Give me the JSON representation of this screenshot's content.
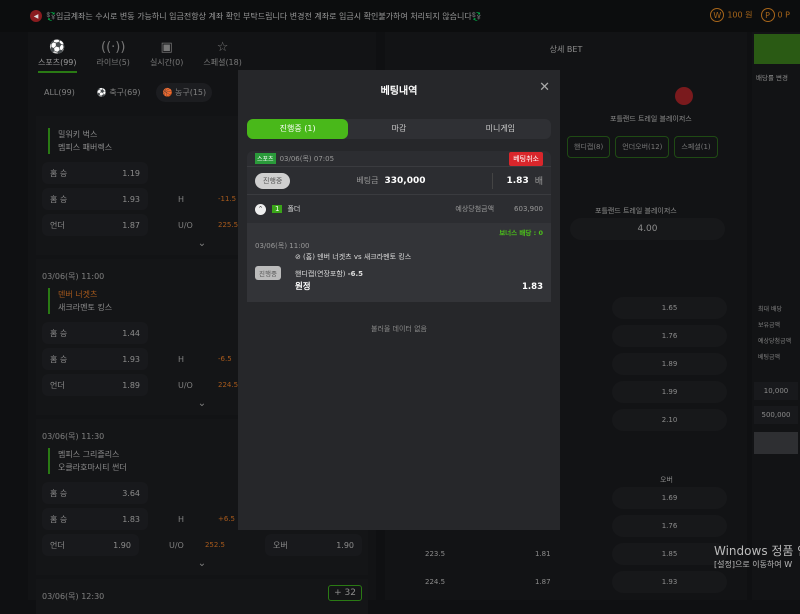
{
  "topbar": {
    "notice": "💱입금계좌는 수시로 변동 가능하니 입금전항상 계좌 확인 부탁드립니다 변경전 계좌로 입금시 확인불가하여 처리되지 않습니다💱",
    "notice_icon": "megaphone-icon",
    "wallet": "100 원",
    "points": "0 P"
  },
  "left": {
    "tabs": [
      {
        "label": "스포츠(99)",
        "icon": "⚽"
      },
      {
        "label": "라이브(5)",
        "icon": "((·))"
      },
      {
        "label": "실시간(0)",
        "icon": "▣"
      },
      {
        "label": "스페셜(18)",
        "icon": "☆"
      }
    ],
    "subtabs": [
      "ALL(99)",
      "⚽ 축구(69)",
      "🏀 농구(15)"
    ],
    "matches": [
      {
        "date": "",
        "home": "밀워키 벅스",
        "away": "멤피스 패버렉스",
        "rows": [
          [
            "홈 승",
            "1.19",
            "",
            ""
          ],
          [
            "홈 승",
            "1.93",
            "H",
            "-11.5"
          ],
          [
            "언더",
            "1.87",
            "U/O",
            "225.5"
          ]
        ]
      },
      {
        "date": "03/06(목) 11:00",
        "home": "덴버 너겟츠",
        "away": "새크라멘토 킹스",
        "rows": [
          [
            "홈 승",
            "1.44",
            "",
            ""
          ],
          [
            "홈 승",
            "1.93",
            "H",
            "-6.5"
          ],
          [
            "언더",
            "1.89",
            "U/O",
            "224.5"
          ]
        ]
      },
      {
        "date": "03/06(목) 11:30",
        "home": "멤피스 그리즐리스",
        "away": "오클라호마시티 썬더",
        "rows": [
          [
            "홈 승",
            "3.64",
            "",
            ""
          ],
          [
            "홈 승",
            "1.83",
            "H",
            "+6.5"
          ],
          [
            "언더",
            "1.90",
            "U/O",
            "252.5"
          ]
        ],
        "over": "오버",
        "over_odds": "1.90"
      },
      {
        "date": "03/06(목) 12:30",
        "more": "+ 32"
      }
    ]
  },
  "mid": {
    "title": "상세 BET",
    "team": "포틀랜드 트레일 블레이저스",
    "buttons": [
      "핸디캡(8)",
      "언더오버(12)",
      "스페셜(1)"
    ],
    "odds_a": "4.00",
    "odds_list": [
      "1.65",
      "1.76",
      "1.89",
      "1.99",
      "2.10"
    ],
    "over_label": "오버",
    "odds_list2": [
      "1.69",
      "1.76",
      "1.85",
      "1.93"
    ],
    "lines": [
      "223.5",
      "224.5"
    ],
    "line_odds": [
      "1.81",
      "1.87"
    ]
  },
  "right": {
    "label": "배당률 변경",
    "fields": [
      "최대 배당",
      "보유금액",
      "예상당첨금액",
      "베팅금액"
    ],
    "chips": [
      "10,000",
      "500,000"
    ]
  },
  "modal": {
    "title": "베팅내역",
    "tabs": [
      "진행중 (1)",
      "마감",
      "미니게임"
    ],
    "bet": {
      "tag": "스포츠",
      "datetime": "03/06(목) 07:05",
      "cancel": "베팅취소",
      "status": "진행중",
      "amount_label": "베팅금",
      "amount": "330,000",
      "odds": "1.83",
      "odds_unit": "배",
      "count": "1",
      "type": "폴더",
      "win_label": "예상당첨금액",
      "win": "603,900",
      "bonus": "보너스 배당 : 0",
      "match_date": "03/06(목) 11:00",
      "match": "(홈) 덴버 너겟츠 vs 새크라멘토 킹스",
      "item_status": "진행중",
      "market": "핸디캡(연장포함)",
      "line": "-6.5",
      "pick": "원정",
      "pick_odds": "1.83"
    },
    "empty": "불러올 데이터 없음"
  },
  "watermark": {
    "line1": "Windows 정품 인",
    "line2": "[설정]으로 이동하여 W"
  },
  "colors": {
    "accent": "#49b81a",
    "danger": "#d9262b",
    "orange": "#e07020"
  }
}
